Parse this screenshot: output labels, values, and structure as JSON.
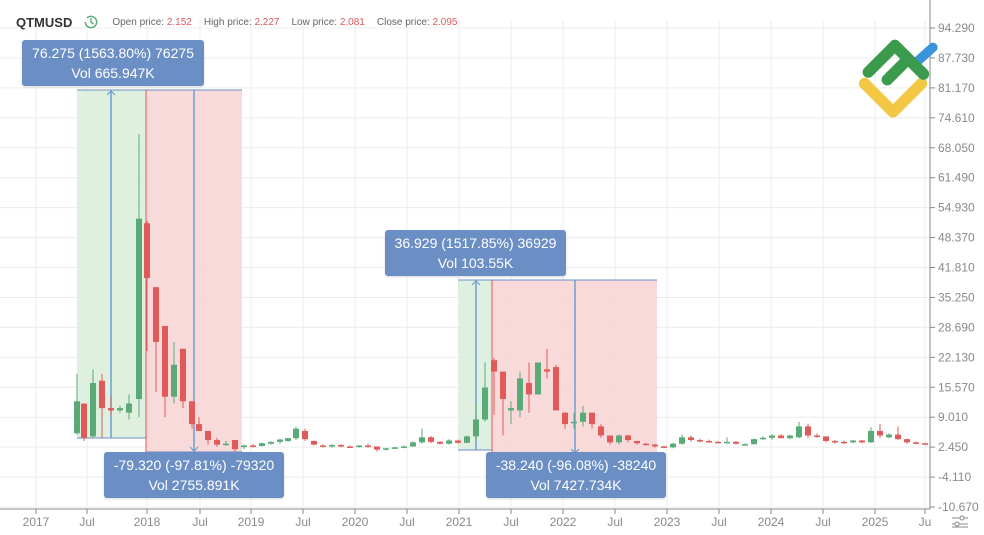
{
  "header": {
    "symbol": "QTMUSD",
    "clock_icon": "clock-icon",
    "open_label": "Open price:",
    "open_value": "2.152",
    "high_label": "High price:",
    "high_value": "2.227",
    "low_label": "Low price:",
    "low_value": "2.081",
    "close_label": "Close price:",
    "close_value": "2.095"
  },
  "measurements": [
    {
      "line1": "76.275 (1563.80%) 76275",
      "line2": "Vol 665.947K"
    },
    {
      "line1": "-79.320 (-97.81%) -79320",
      "line2": "Vol 2755.891K"
    },
    {
      "line1": "36.929 (1517.85%) 36929",
      "line2": "Vol 103.55K"
    },
    {
      "line1": "-38.240 (-96.08%) -38240",
      "line2": "Vol 7427.734K"
    }
  ],
  "colors": {
    "up": "#5aaa78",
    "down": "#e05a5a",
    "badge": "#6b8fc4",
    "range_up_fill": "#dbeedd",
    "range_down_fill": "#f8d6d6",
    "grid": "#ececec",
    "axis": "#8a8a8a"
  },
  "chart_data": {
    "type": "candlestick",
    "title": "QTMUSD",
    "xlabel": "",
    "ylabel": "",
    "ylim": [
      -10.67,
      94.29
    ],
    "y_ticks": [
      "94.290",
      "87.730",
      "81.170",
      "74.610",
      "68.050",
      "61.490",
      "54.930",
      "48.370",
      "41.810",
      "35.250",
      "28.690",
      "22.130",
      "15.570",
      "9.010",
      "2.450",
      "-4.110",
      "-10.670"
    ],
    "x_ticks": [
      "2017",
      "Jul",
      "2018",
      "Jul",
      "2019",
      "Jul",
      "2020",
      "Jul",
      "2021",
      "Jul",
      "2022",
      "Jul",
      "2023",
      "Jul",
      "2024",
      "Jul",
      "2025",
      "Ju"
    ],
    "grid": true,
    "interval": "monthly",
    "candles": [
      {
        "x": 77,
        "o": 5.5,
        "h": 18.5,
        "l": 5.2,
        "c": 12.5
      },
      {
        "x": 84,
        "o": 12.0,
        "h": 12.0,
        "l": 3.8,
        "c": 4.5
      },
      {
        "x": 93,
        "o": 4.8,
        "h": 19.5,
        "l": 4.6,
        "c": 16.5
      },
      {
        "x": 102,
        "o": 17.0,
        "h": 18.5,
        "l": 4.5,
        "c": 11.0
      },
      {
        "x": 111,
        "o": 11.0,
        "h": 13.5,
        "l": 9.5,
        "c": 10.5
      },
      {
        "x": 120,
        "o": 10.5,
        "h": 11.5,
        "l": 10.0,
        "c": 11.0
      },
      {
        "x": 129,
        "o": 10.0,
        "h": 14.0,
        "l": 8.5,
        "c": 12.0
      },
      {
        "x": 139,
        "o": 13.0,
        "h": 71.0,
        "l": 9.0,
        "c": 52.5
      },
      {
        "x": 147,
        "o": 51.5,
        "h": 52.0,
        "l": 23.5,
        "c": 39.5
      },
      {
        "x": 156,
        "o": 37.5,
        "h": 37.5,
        "l": 14.5,
        "c": 25.5
      },
      {
        "x": 165,
        "o": 29.0,
        "h": 29.0,
        "l": 9.0,
        "c": 13.5
      },
      {
        "x": 174,
        "o": 13.5,
        "h": 25.5,
        "l": 12.0,
        "c": 20.5
      },
      {
        "x": 183,
        "o": 24.0,
        "h": 22.5,
        "l": 11.0,
        "c": 12.5
      },
      {
        "x": 192,
        "o": 12.5,
        "h": 12.5,
        "l": 6.5,
        "c": 7.5
      },
      {
        "x": 199,
        "o": 7.5,
        "h": 9.0,
        "l": 6.5,
        "c": 6.0
      },
      {
        "x": 208,
        "o": 6.0,
        "h": 6.0,
        "l": 3.0,
        "c": 4.0
      },
      {
        "x": 217,
        "o": 4.0,
        "h": 4.5,
        "l": 2.5,
        "c": 3.0
      },
      {
        "x": 226,
        "o": 3.2,
        "h": 3.8,
        "l": 2.8,
        "c": 3.2
      },
      {
        "x": 235,
        "o": 4.0,
        "h": 4.0,
        "l": 1.5,
        "c": 2.0
      }
    ]
  }
}
